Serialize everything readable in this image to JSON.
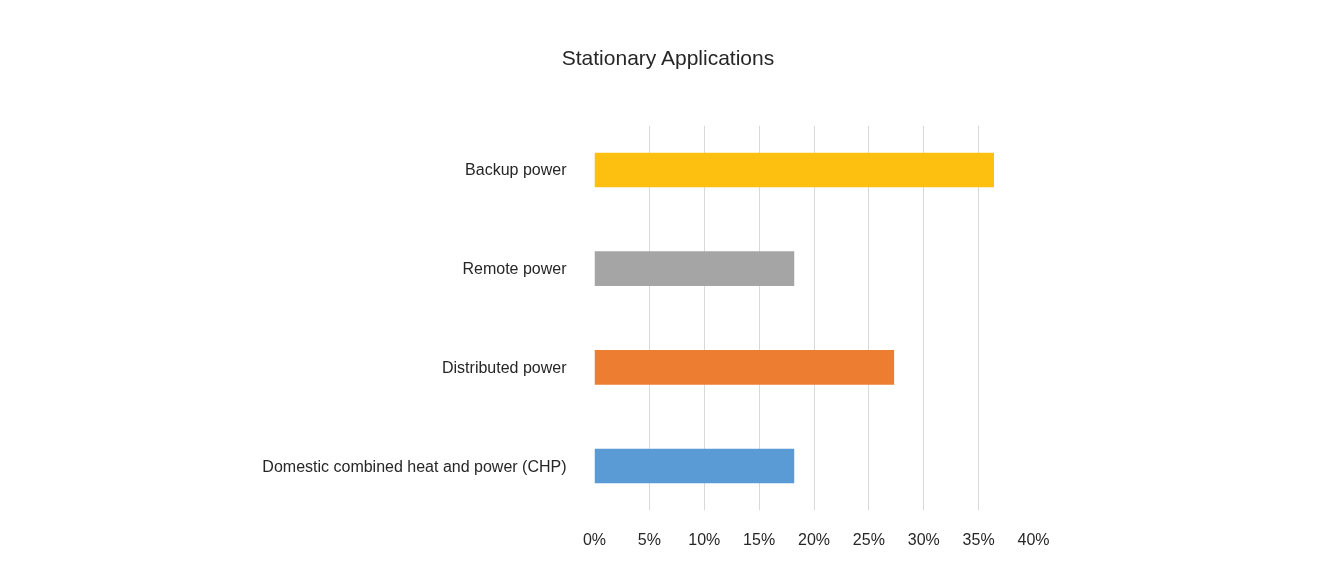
{
  "chart_data": {
    "type": "bar",
    "orientation": "horizontal",
    "title": "Stationary Applications",
    "categories": [
      "Backup power",
      "Remote power",
      "Distributed power",
      "Domestic combined heat and power (CHP)"
    ],
    "values": [
      36.4,
      18.2,
      27.3,
      18.2
    ],
    "colors": [
      "#fdc010",
      "#a5a5a5",
      "#ed7d31",
      "#5b9bd5"
    ],
    "xlim": [
      0,
      40
    ],
    "xticks": [
      {
        "value": 0,
        "label": "0%"
      },
      {
        "value": 5,
        "label": "5%"
      },
      {
        "value": 10,
        "label": "10%"
      },
      {
        "value": 15,
        "label": "15%"
      },
      {
        "value": 20,
        "label": "20%"
      },
      {
        "value": 25,
        "label": "25%"
      },
      {
        "value": 30,
        "label": "30%"
      },
      {
        "value": 35,
        "label": "35%"
      },
      {
        "value": 40,
        "label": "40%"
      }
    ],
    "grid": "x"
  }
}
